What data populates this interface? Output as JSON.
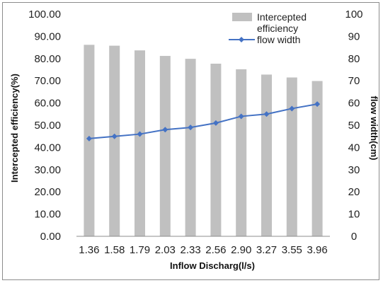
{
  "chart_data": {
    "type": "bar",
    "categories": [
      "1.36",
      "1.58",
      "1.79",
      "2.03",
      "2.33",
      "2.56",
      "2.90",
      "3.27",
      "3.55",
      "3.96"
    ],
    "series": [
      {
        "name": "Intercepted efficiency",
        "type": "bar",
        "axis": "left",
        "color": "#c0c0c0",
        "values": [
          86.2,
          85.8,
          83.7,
          81.2,
          79.9,
          77.7,
          75.2,
          72.8,
          71.5,
          69.9
        ]
      },
      {
        "name": "flow width",
        "type": "line",
        "axis": "right",
        "color": "#4472c4",
        "values": [
          44,
          45,
          46,
          48,
          49,
          51,
          54,
          55,
          57.5,
          59.5
        ]
      }
    ],
    "xlabel": "Inflow Discharg(l/s)",
    "ylabel": "Intercepted efficiency(%)",
    "y2label": "flow width(cm)",
    "ylim": [
      0,
      100
    ],
    "y2lim": [
      0,
      100
    ],
    "yticks": [
      "0.00",
      "10.00",
      "20.00",
      "30.00",
      "40.00",
      "50.00",
      "60.00",
      "70.00",
      "80.00",
      "90.00",
      "100.00"
    ],
    "y2ticks": [
      "0",
      "10",
      "20",
      "30",
      "40",
      "50",
      "60",
      "70",
      "80",
      "90",
      "100"
    ],
    "legend": {
      "placement": "top-right",
      "bar_label_line1": "Intercepted",
      "bar_label_line2": "efficiency",
      "line_label": "flow width"
    },
    "grid": false
  }
}
